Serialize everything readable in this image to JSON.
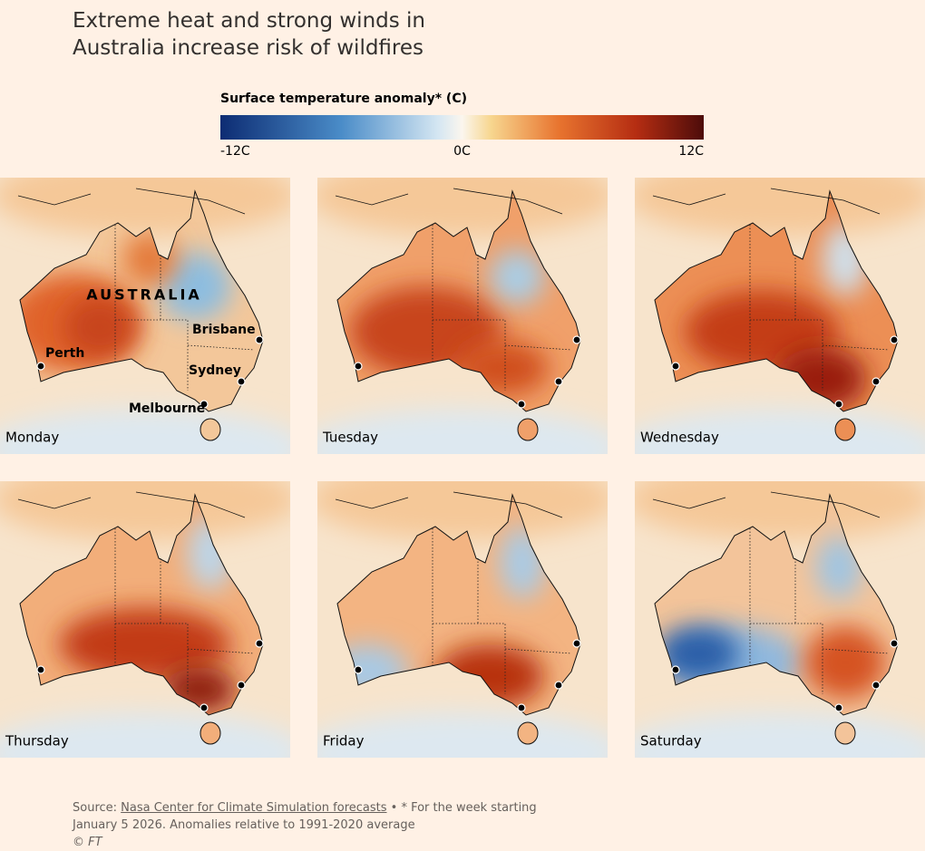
{
  "header": {
    "title": "Extreme heat and strong winds in Australia increase risk of wildfires"
  },
  "legend": {
    "title": "Surface temperature anomaly* (C)",
    "range": [
      -12,
      12
    ],
    "ticks": [
      {
        "value": -12,
        "label": "-12C"
      },
      {
        "value": 0,
        "label": "0C"
      },
      {
        "value": 12,
        "label": "12C"
      }
    ]
  },
  "map": {
    "country_label": "AUSTRALIA",
    "cities": [
      "Perth",
      "Brisbane",
      "Sydney",
      "Melbourne"
    ],
    "panels": [
      "Monday",
      "Tuesday",
      "Wednesday",
      "Thursday",
      "Friday",
      "Saturday"
    ]
  },
  "footer": {
    "source_label": "Source:",
    "source_link": "Nasa Center for Climate Simulation forecasts",
    "note": "• * For the week starting January 5 2026. Anomalies relative to 1991-2020 average",
    "copyright": "© FT"
  }
}
